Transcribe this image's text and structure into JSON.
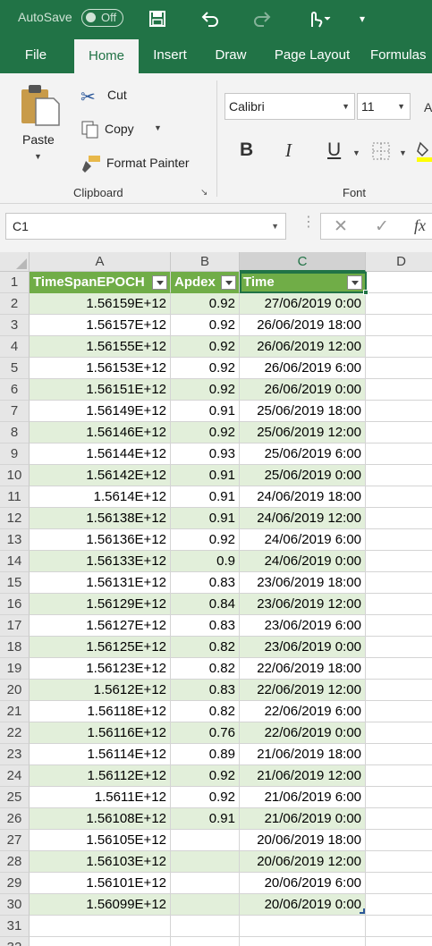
{
  "titlebar": {
    "autosave_label": "AutoSave",
    "autosave_state": "Off"
  },
  "tabs": [
    "File",
    "Home",
    "Insert",
    "Draw",
    "Page Layout",
    "Formulas"
  ],
  "active_tab": "Home",
  "ribbon": {
    "paste": "Paste",
    "cut": "Cut",
    "copy": "Copy",
    "format_painter": "Format Painter",
    "clipboard_group": "Clipboard",
    "font_name": "Calibri",
    "font_size": "11",
    "bold": "B",
    "italic": "I",
    "underline": "U",
    "font_group": "Font"
  },
  "formula_bar": {
    "name_box": "C1",
    "fx": "fx"
  },
  "grid": {
    "columns": [
      "A",
      "B",
      "C",
      "D"
    ],
    "headers": [
      "TimeSpanEPOCH",
      "Apdex",
      "Time"
    ],
    "rows": [
      [
        "1.56159E+12",
        "0.92",
        "27/06/2019 0:00"
      ],
      [
        "1.56157E+12",
        "0.92",
        "26/06/2019 18:00"
      ],
      [
        "1.56155E+12",
        "0.92",
        "26/06/2019 12:00"
      ],
      [
        "1.56153E+12",
        "0.92",
        "26/06/2019 6:00"
      ],
      [
        "1.56151E+12",
        "0.92",
        "26/06/2019 0:00"
      ],
      [
        "1.56149E+12",
        "0.91",
        "25/06/2019 18:00"
      ],
      [
        "1.56146E+12",
        "0.92",
        "25/06/2019 12:00"
      ],
      [
        "1.56144E+12",
        "0.93",
        "25/06/2019 6:00"
      ],
      [
        "1.56142E+12",
        "0.91",
        "25/06/2019 0:00"
      ],
      [
        "1.5614E+12",
        "0.91",
        "24/06/2019 18:00"
      ],
      [
        "1.56138E+12",
        "0.91",
        "24/06/2019 12:00"
      ],
      [
        "1.56136E+12",
        "0.92",
        "24/06/2019 6:00"
      ],
      [
        "1.56133E+12",
        "0.9",
        "24/06/2019 0:00"
      ],
      [
        "1.56131E+12",
        "0.83",
        "23/06/2019 18:00"
      ],
      [
        "1.56129E+12",
        "0.84",
        "23/06/2019 12:00"
      ],
      [
        "1.56127E+12",
        "0.83",
        "23/06/2019 6:00"
      ],
      [
        "1.56125E+12",
        "0.82",
        "23/06/2019 0:00"
      ],
      [
        "1.56123E+12",
        "0.82",
        "22/06/2019 18:00"
      ],
      [
        "1.5612E+12",
        "0.83",
        "22/06/2019 12:00"
      ],
      [
        "1.56118E+12",
        "0.82",
        "22/06/2019 6:00"
      ],
      [
        "1.56116E+12",
        "0.76",
        "22/06/2019 0:00"
      ],
      [
        "1.56114E+12",
        "0.89",
        "21/06/2019 18:00"
      ],
      [
        "1.56112E+12",
        "0.92",
        "21/06/2019 12:00"
      ],
      [
        "1.5611E+12",
        "0.92",
        "21/06/2019 6:00"
      ],
      [
        "1.56108E+12",
        "0.91",
        "21/06/2019 0:00"
      ],
      [
        "1.56105E+12",
        "",
        "20/06/2019 18:00"
      ],
      [
        "1.56103E+12",
        "",
        "20/06/2019 12:00"
      ],
      [
        "1.56101E+12",
        "",
        "20/06/2019 6:00"
      ],
      [
        "1.56099E+12",
        "",
        "20/06/2019 0:00"
      ]
    ]
  },
  "colors": {
    "excel_green": "#217346",
    "table_header": "#70ad47",
    "band": "#e2efda"
  }
}
